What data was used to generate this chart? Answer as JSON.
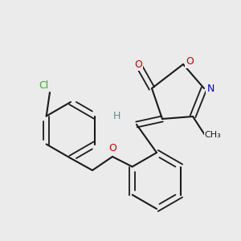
{
  "background_color": "#ebebeb",
  "bond_color": "#1a1a1a",
  "Cl_color": "#33aa33",
  "O_color": "#cc0000",
  "N_color": "#0000cc",
  "H_color": "#5a9090",
  "atoms": {
    "Cl": "#33aa33",
    "O": "#cc0000",
    "N": "#0000cc",
    "H": "#5a9090",
    "C": "#1a1a1a"
  }
}
